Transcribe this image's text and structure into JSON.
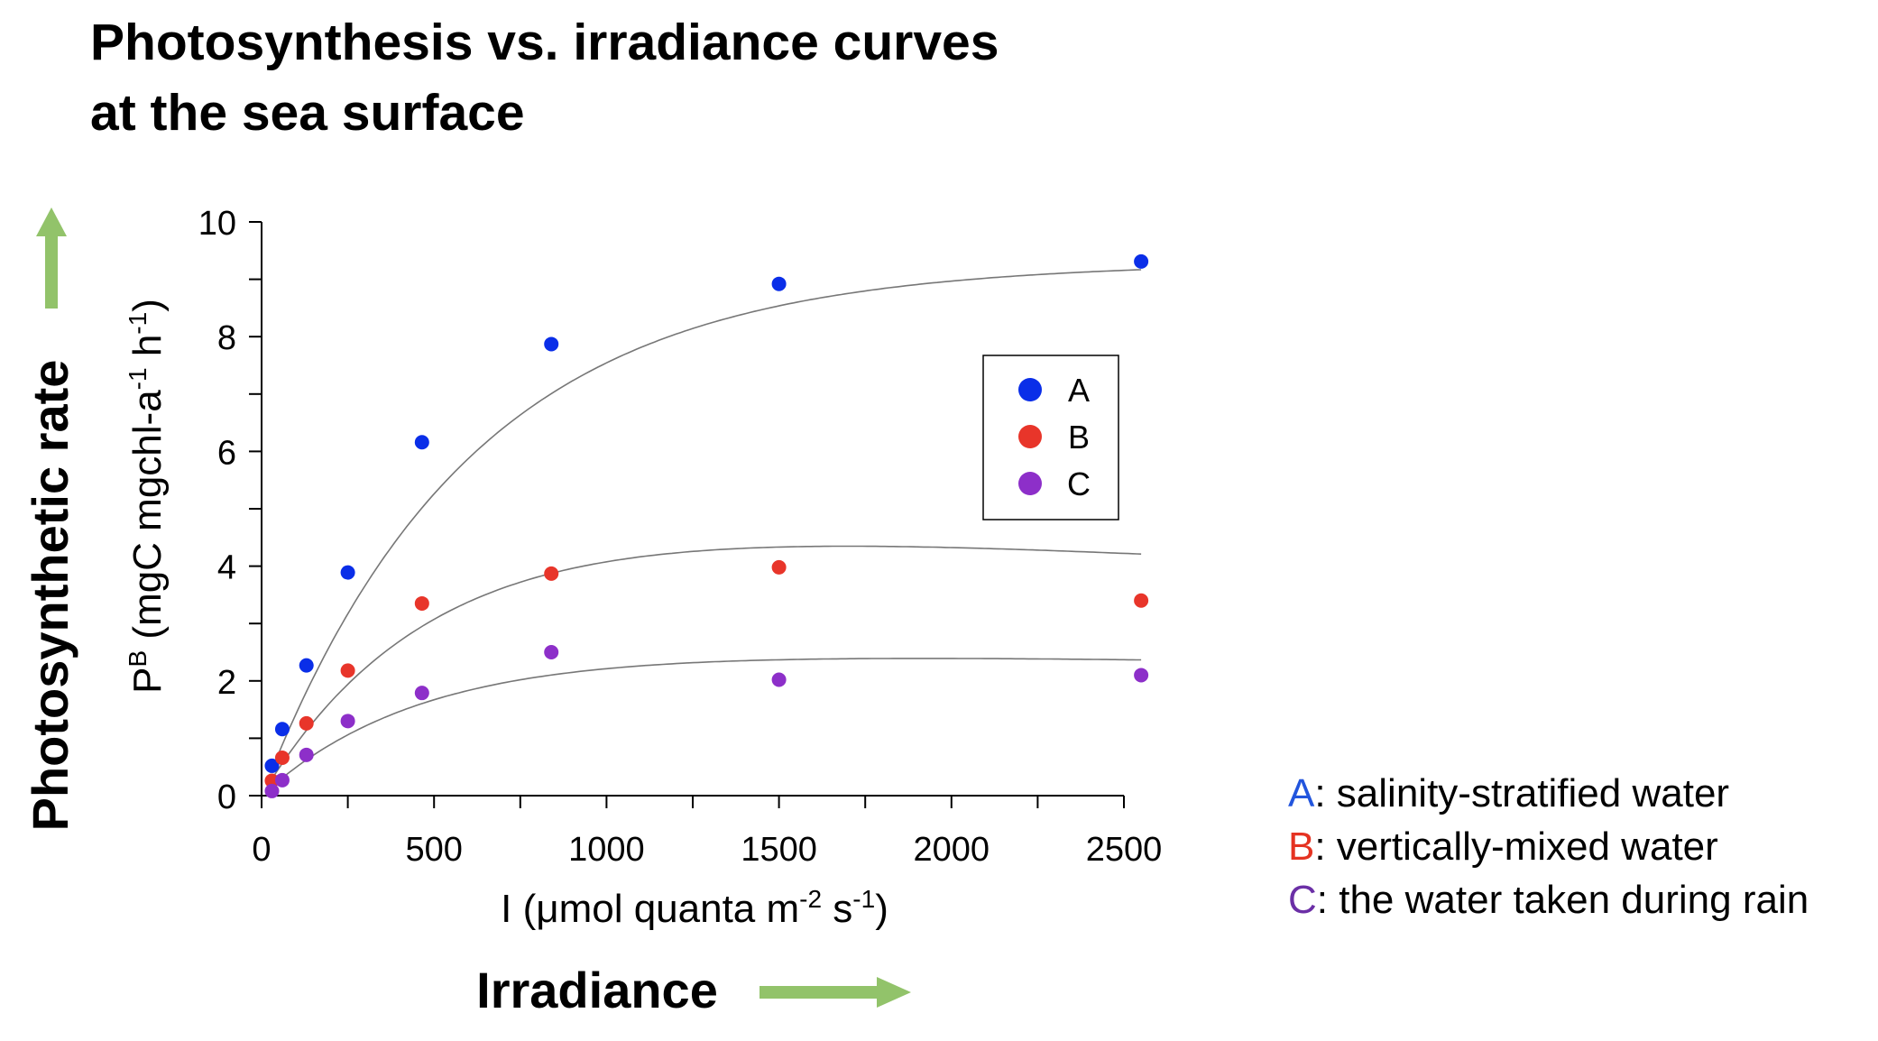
{
  "title": {
    "line1": "Photosynthesis vs. irradiance curves",
    "line2": "at the sea surface"
  },
  "big_labels": {
    "y": "Photosynthetic rate",
    "x": "Irradiance",
    "arrow_color": "#92c36a"
  },
  "notes": [
    {
      "letter": "A",
      "text": ": salinity-stratified water",
      "color": "#2255dd"
    },
    {
      "letter": "B",
      "text": ": vertically-mixed water",
      "color": "#e53322"
    },
    {
      "letter": "C",
      "text": ": the water taken during rain",
      "color": "#6b2fa6"
    }
  ],
  "chart_data": {
    "type": "scatter",
    "xlim": [
      0,
      2500
    ],
    "ylim": [
      0,
      10
    ],
    "x_ticks": [
      "0",
      "500",
      "1000",
      "1500",
      "2000",
      "2500"
    ],
    "y_ticks": [
      "0",
      "2",
      "4",
      "6",
      "8",
      "10"
    ],
    "x_minor_step": 250,
    "y_minor_step": 1,
    "xlabel": {
      "main": "I (μmol quanta m",
      "sup1": "-2",
      "mid": " s",
      "sup2": "-1",
      "end": ")"
    },
    "ylabel": {
      "p": "P",
      "sup": "B",
      "main": " (mgC mgchl-a",
      "sup1": "-1",
      "mid": " h",
      "sup2": "-1",
      "end": ")"
    },
    "legend": {
      "position": "upper-right"
    },
    "curve_color": "#777777",
    "series": [
      {
        "name": "A",
        "color": "#0a2ee8",
        "x": [
          30,
          60,
          130,
          250,
          465,
          840,
          1500,
          2550
        ],
        "y": [
          0.52,
          1.16,
          2.27,
          3.89,
          6.16,
          7.87,
          8.92,
          9.31
        ],
        "fit": {
          "pmax": 9.3,
          "alpha": 0.0155,
          "beta": 0
        }
      },
      {
        "name": "B",
        "color": "#e8352a",
        "x": [
          30,
          60,
          130,
          250,
          465,
          840,
          1500,
          2550
        ],
        "y": [
          0.26,
          0.66,
          1.26,
          2.18,
          3.35,
          3.87,
          3.98,
          3.4
        ],
        "fit": {
          "pmax": 5.1,
          "alpha": 0.01,
          "beta": 0.00037
        }
      },
      {
        "name": "C",
        "color": "#8d2fc9",
        "x": [
          30,
          60,
          130,
          250,
          465,
          840,
          1500,
          2550
        ],
        "y": [
          0.08,
          0.27,
          0.71,
          1.3,
          1.79,
          2.5,
          2.02,
          2.1
        ],
        "fit": {
          "pmax": 2.62,
          "alpha": 0.0055,
          "beta": 0.0001
        }
      }
    ]
  }
}
